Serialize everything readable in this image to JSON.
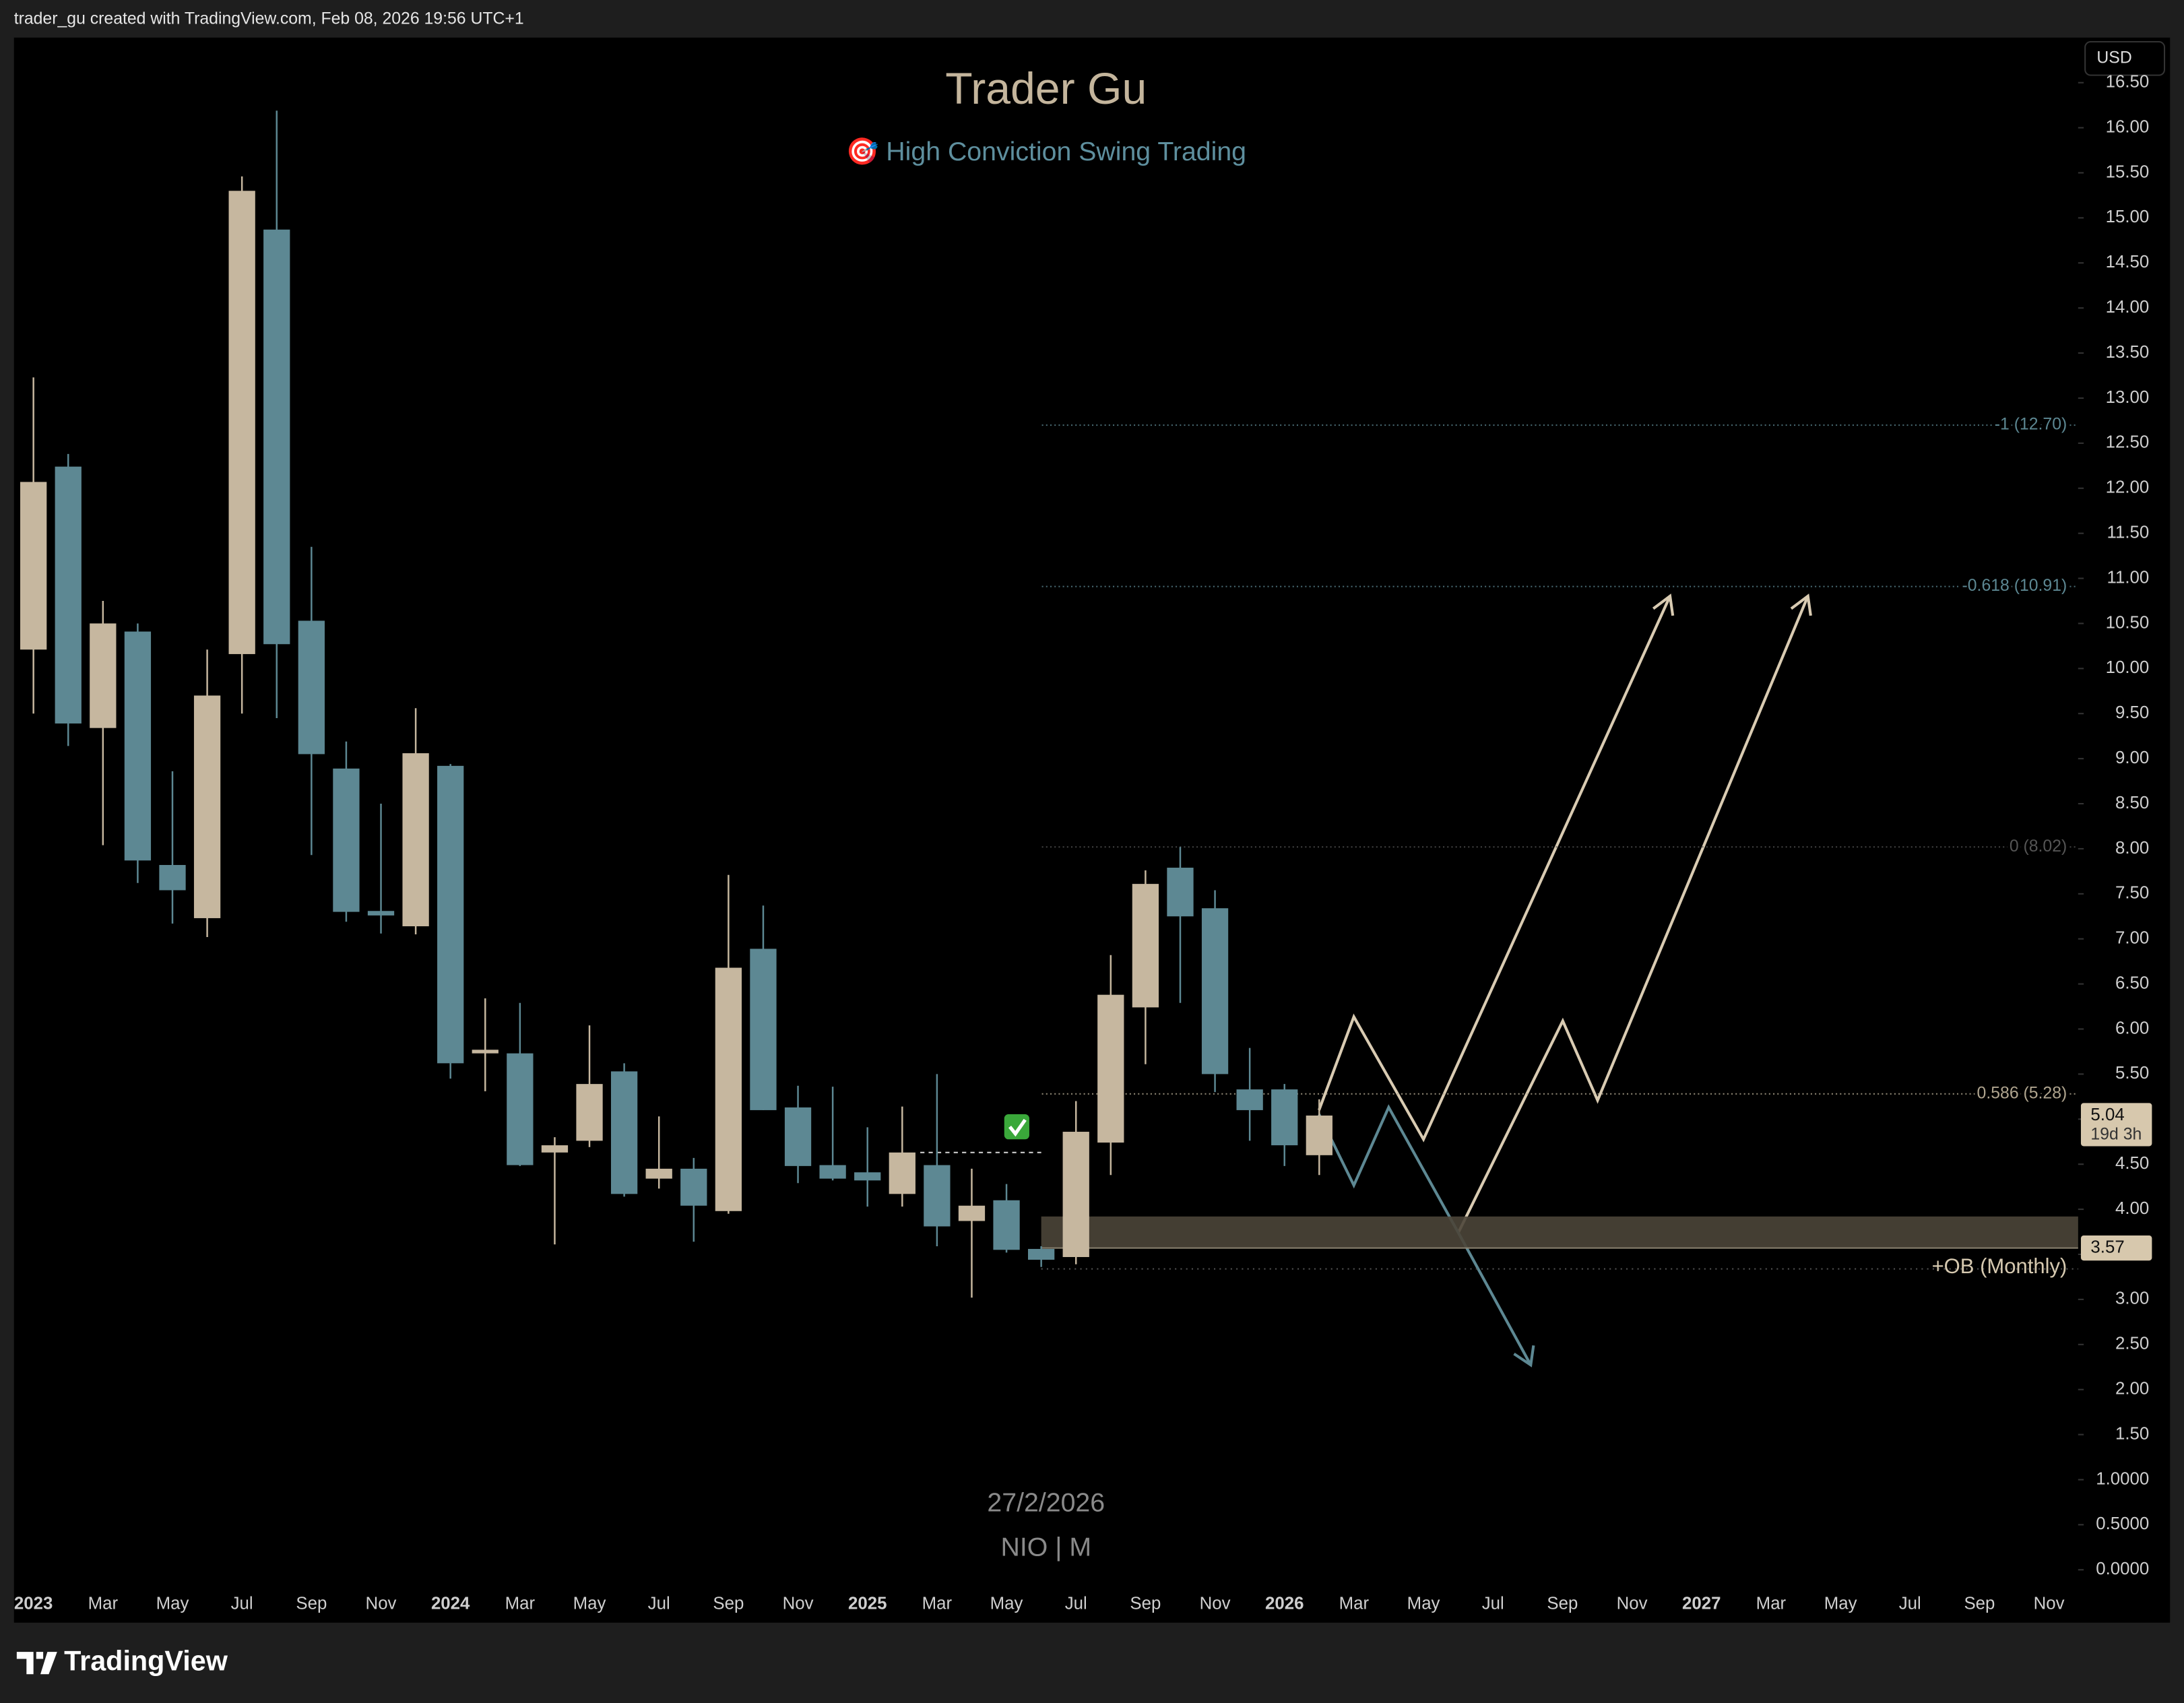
{
  "chart_data": {
    "type": "candlestick",
    "header": "trader_gu created with TradingView.com, Feb 08, 2026 19:56 UTC+1",
    "title": "Trader Gu",
    "subtitle": "🎯 High Conviction Swing Trading",
    "currency": "USD",
    "date_note": "27/2/2026",
    "symbol": "NIO | M",
    "brand": "TradingView",
    "up_color": "#c6b79f",
    "down_color": "#5d8893",
    "x": [
      "2023-01",
      "2023-02",
      "2023-03",
      "2023-04",
      "2023-05",
      "2023-06",
      "2023-07",
      "2023-08",
      "2023-09",
      "2023-10",
      "2023-11",
      "2023-12",
      "2024-01",
      "2024-02",
      "2024-03",
      "2024-04",
      "2024-05",
      "2024-06",
      "2024-07",
      "2024-08",
      "2024-09",
      "2024-10",
      "2024-11",
      "2024-12",
      "2025-01",
      "2025-02",
      "2025-03",
      "2025-04",
      "2025-05",
      "2025-06",
      "2025-07",
      "2025-08",
      "2025-09",
      "2025-10",
      "2025-11",
      "2025-12",
      "2026-01",
      "2026-02"
    ],
    "open": [
      10.21,
      12.24,
      9.34,
      10.41,
      7.82,
      7.23,
      10.16,
      14.87,
      10.53,
      8.89,
      7.31,
      7.14,
      8.92,
      5.73,
      5.73,
      4.63,
      4.76,
      5.53,
      4.34,
      4.45,
      3.98,
      6.89,
      5.13,
      4.49,
      4.41,
      4.17,
      4.49,
      3.87,
      4.1,
      3.56,
      3.47,
      4.74,
      6.24,
      7.79,
      7.34,
      5.33,
      5.33,
      4.6
    ],
    "high": [
      13.23,
      12.38,
      10.75,
      10.5,
      8.86,
      10.21,
      15.46,
      16.19,
      11.35,
      9.19,
      8.5,
      9.56,
      8.94,
      6.34,
      6.29,
      4.8,
      6.04,
      5.62,
      5.03,
      4.57,
      7.71,
      7.37,
      5.37,
      5.36,
      4.91,
      5.14,
      5.5,
      4.45,
      4.28,
      3.59,
      5.2,
      6.82,
      7.76,
      8.02,
      7.54,
      5.79,
      5.39,
      5.22
    ],
    "low": [
      9.5,
      9.14,
      8.04,
      7.62,
      7.17,
      7.02,
      9.5,
      9.45,
      7.93,
      7.19,
      7.06,
      7.05,
      5.45,
      5.31,
      4.48,
      3.61,
      4.69,
      4.14,
      4.23,
      3.64,
      3.95,
      5.1,
      4.29,
      4.32,
      4.03,
      4.03,
      3.59,
      3.02,
      3.52,
      3.36,
      3.39,
      4.38,
      5.61,
      6.29,
      5.3,
      4.76,
      4.48,
      4.38
    ],
    "close": [
      12.07,
      9.39,
      10.5,
      7.87,
      7.54,
      9.7,
      15.3,
      10.27,
      9.05,
      7.3,
      7.26,
      9.06,
      5.62,
      5.77,
      4.49,
      4.71,
      5.39,
      4.17,
      4.45,
      4.04,
      6.68,
      5.1,
      4.48,
      4.34,
      4.32,
      4.63,
      3.81,
      4.04,
      3.55,
      3.44,
      4.86,
      6.38,
      7.61,
      7.25,
      5.5,
      5.1,
      4.71,
      5.04
    ],
    "ylim": [
      -0.2,
      17.0
    ],
    "yticks": [
      {
        "value": 0,
        "label": "0.0000"
      },
      {
        "value": 0.5,
        "label": "0.5000"
      },
      {
        "value": 1,
        "label": "1.0000"
      },
      {
        "value": 1.5,
        "label": "1.50"
      },
      {
        "value": 2,
        "label": "2.00"
      },
      {
        "value": 2.5,
        "label": "2.50"
      },
      {
        "value": 3,
        "label": "3.00"
      },
      {
        "value": 3.5,
        "label": "3.50"
      },
      {
        "value": 4,
        "label": "4.00"
      },
      {
        "value": 4.5,
        "label": "4.50"
      },
      {
        "value": 5,
        "label": "5.00"
      },
      {
        "value": 5.5,
        "label": "5.50"
      },
      {
        "value": 6,
        "label": "6.00"
      },
      {
        "value": 6.5,
        "label": "6.50"
      },
      {
        "value": 7,
        "label": "7.00"
      },
      {
        "value": 7.5,
        "label": "7.50"
      },
      {
        "value": 8,
        "label": "8.00"
      },
      {
        "value": 8.5,
        "label": "8.50"
      },
      {
        "value": 9,
        "label": "9.00"
      },
      {
        "value": 9.5,
        "label": "9.50"
      },
      {
        "value": 10,
        "label": "10.00"
      },
      {
        "value": 10.5,
        "label": "10.50"
      },
      {
        "value": 11,
        "label": "11.00"
      },
      {
        "value": 11.5,
        "label": "11.50"
      },
      {
        "value": 12,
        "label": "12.00"
      },
      {
        "value": 12.5,
        "label": "12.50"
      },
      {
        "value": 13,
        "label": "13.00"
      },
      {
        "value": 13.5,
        "label": "13.50"
      },
      {
        "value": 14,
        "label": "14.00"
      },
      {
        "value": 14.5,
        "label": "14.50"
      },
      {
        "value": 15,
        "label": "15.00"
      },
      {
        "value": 15.5,
        "label": "15.50"
      },
      {
        "value": 16,
        "label": "16.00"
      },
      {
        "value": 16.5,
        "label": "16.50"
      }
    ],
    "xticks": [
      {
        "value": "2023-01",
        "label": "2023"
      },
      {
        "value": "2023-03",
        "label": "Mar"
      },
      {
        "value": "2023-05",
        "label": "May"
      },
      {
        "value": "2023-07",
        "label": "Jul"
      },
      {
        "value": "2023-09",
        "label": "Sep"
      },
      {
        "value": "2023-11",
        "label": "Nov"
      },
      {
        "value": "2024-01",
        "label": "2024"
      },
      {
        "value": "2024-03",
        "label": "Mar"
      },
      {
        "value": "2024-05",
        "label": "May"
      },
      {
        "value": "2024-07",
        "label": "Jul"
      },
      {
        "value": "2024-09",
        "label": "Sep"
      },
      {
        "value": "2024-11",
        "label": "Nov"
      },
      {
        "value": "2025-01",
        "label": "2025"
      },
      {
        "value": "2025-03",
        "label": "Mar"
      },
      {
        "value": "2025-05",
        "label": "May"
      },
      {
        "value": "2025-07",
        "label": "Jul"
      },
      {
        "value": "2025-09",
        "label": "Sep"
      },
      {
        "value": "2025-11",
        "label": "Nov"
      },
      {
        "value": "2026-01",
        "label": "2026"
      },
      {
        "value": "2026-03",
        "label": "Mar"
      },
      {
        "value": "2026-05",
        "label": "May"
      },
      {
        "value": "2026-07",
        "label": "Jul"
      },
      {
        "value": "2026-09",
        "label": "Sep"
      },
      {
        "value": "2026-11",
        "label": "Nov"
      },
      {
        "value": "2027-01",
        "label": "2027"
      },
      {
        "value": "2027-03",
        "label": "Mar"
      },
      {
        "value": "2027-05",
        "label": "May"
      },
      {
        "value": "2027-07",
        "label": "Jul"
      },
      {
        "value": "2027-09",
        "label": "Sep"
      },
      {
        "value": "2027-11",
        "label": "Nov"
      }
    ],
    "fib_levels": [
      {
        "value": 12.7,
        "label": "-1 (12.70)",
        "color": "#5d8893"
      },
      {
        "value": 10.91,
        "label": "-0.618 (10.91)",
        "color": "#5d8893"
      },
      {
        "value": 8.02,
        "label": "0 (8.02)",
        "color": "#555555"
      },
      {
        "value": 5.28,
        "label": "0.586 (5.28)",
        "color": "#b0a58f"
      }
    ],
    "zone": {
      "label": "+OB (Monthly)",
      "low": 3.57,
      "high": 3.92,
      "start": "2025-06"
    },
    "last_price": {
      "value": 5.04,
      "countdown": "19d 3h"
    },
    "zone_price": 3.57,
    "entry_level": {
      "value": 4.63,
      "start": "2025-03",
      "end": "2025-06"
    }
  }
}
